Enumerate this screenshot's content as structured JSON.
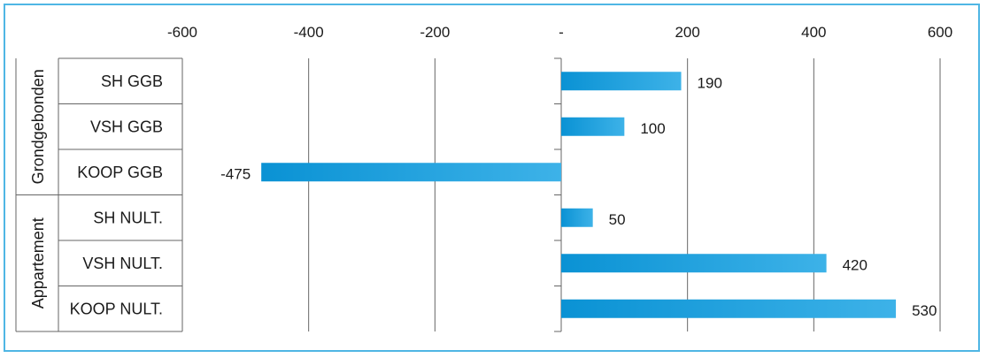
{
  "chart_data": {
    "type": "bar",
    "orientation": "horizontal",
    "title": "",
    "xlim": [
      -600,
      600
    ],
    "x_ticks": [
      -600,
      -400,
      -200,
      0,
      200,
      400,
      600
    ],
    "x_tick_labels": [
      "-600",
      "-400",
      "-200",
      "-",
      "200",
      "400",
      "600"
    ],
    "x_axis_position": "top",
    "grid": true,
    "legend": "none",
    "groups": [
      {
        "name": "Grondgebonden",
        "categories": [
          "SH GGB",
          "VSH GGB",
          "KOOP GGB"
        ]
      },
      {
        "name": "Appartement",
        "categories": [
          "SH NULT.",
          "VSH NULT.",
          "KOOP NULT."
        ]
      }
    ],
    "categories": [
      "SH GGB",
      "VSH GGB",
      "KOOP GGB",
      "SH NULT.",
      "VSH NULT.",
      "KOOP NULT."
    ],
    "values": [
      190,
      100,
      -475,
      50,
      420,
      530
    ],
    "data_labels": [
      "190",
      "100",
      "-475",
      "50",
      "420",
      "530"
    ],
    "colors": {
      "bar_start": "#0a92d4",
      "bar_end": "#3db2e8",
      "frame": "#4fb6e4",
      "grid": "#666666"
    }
  }
}
